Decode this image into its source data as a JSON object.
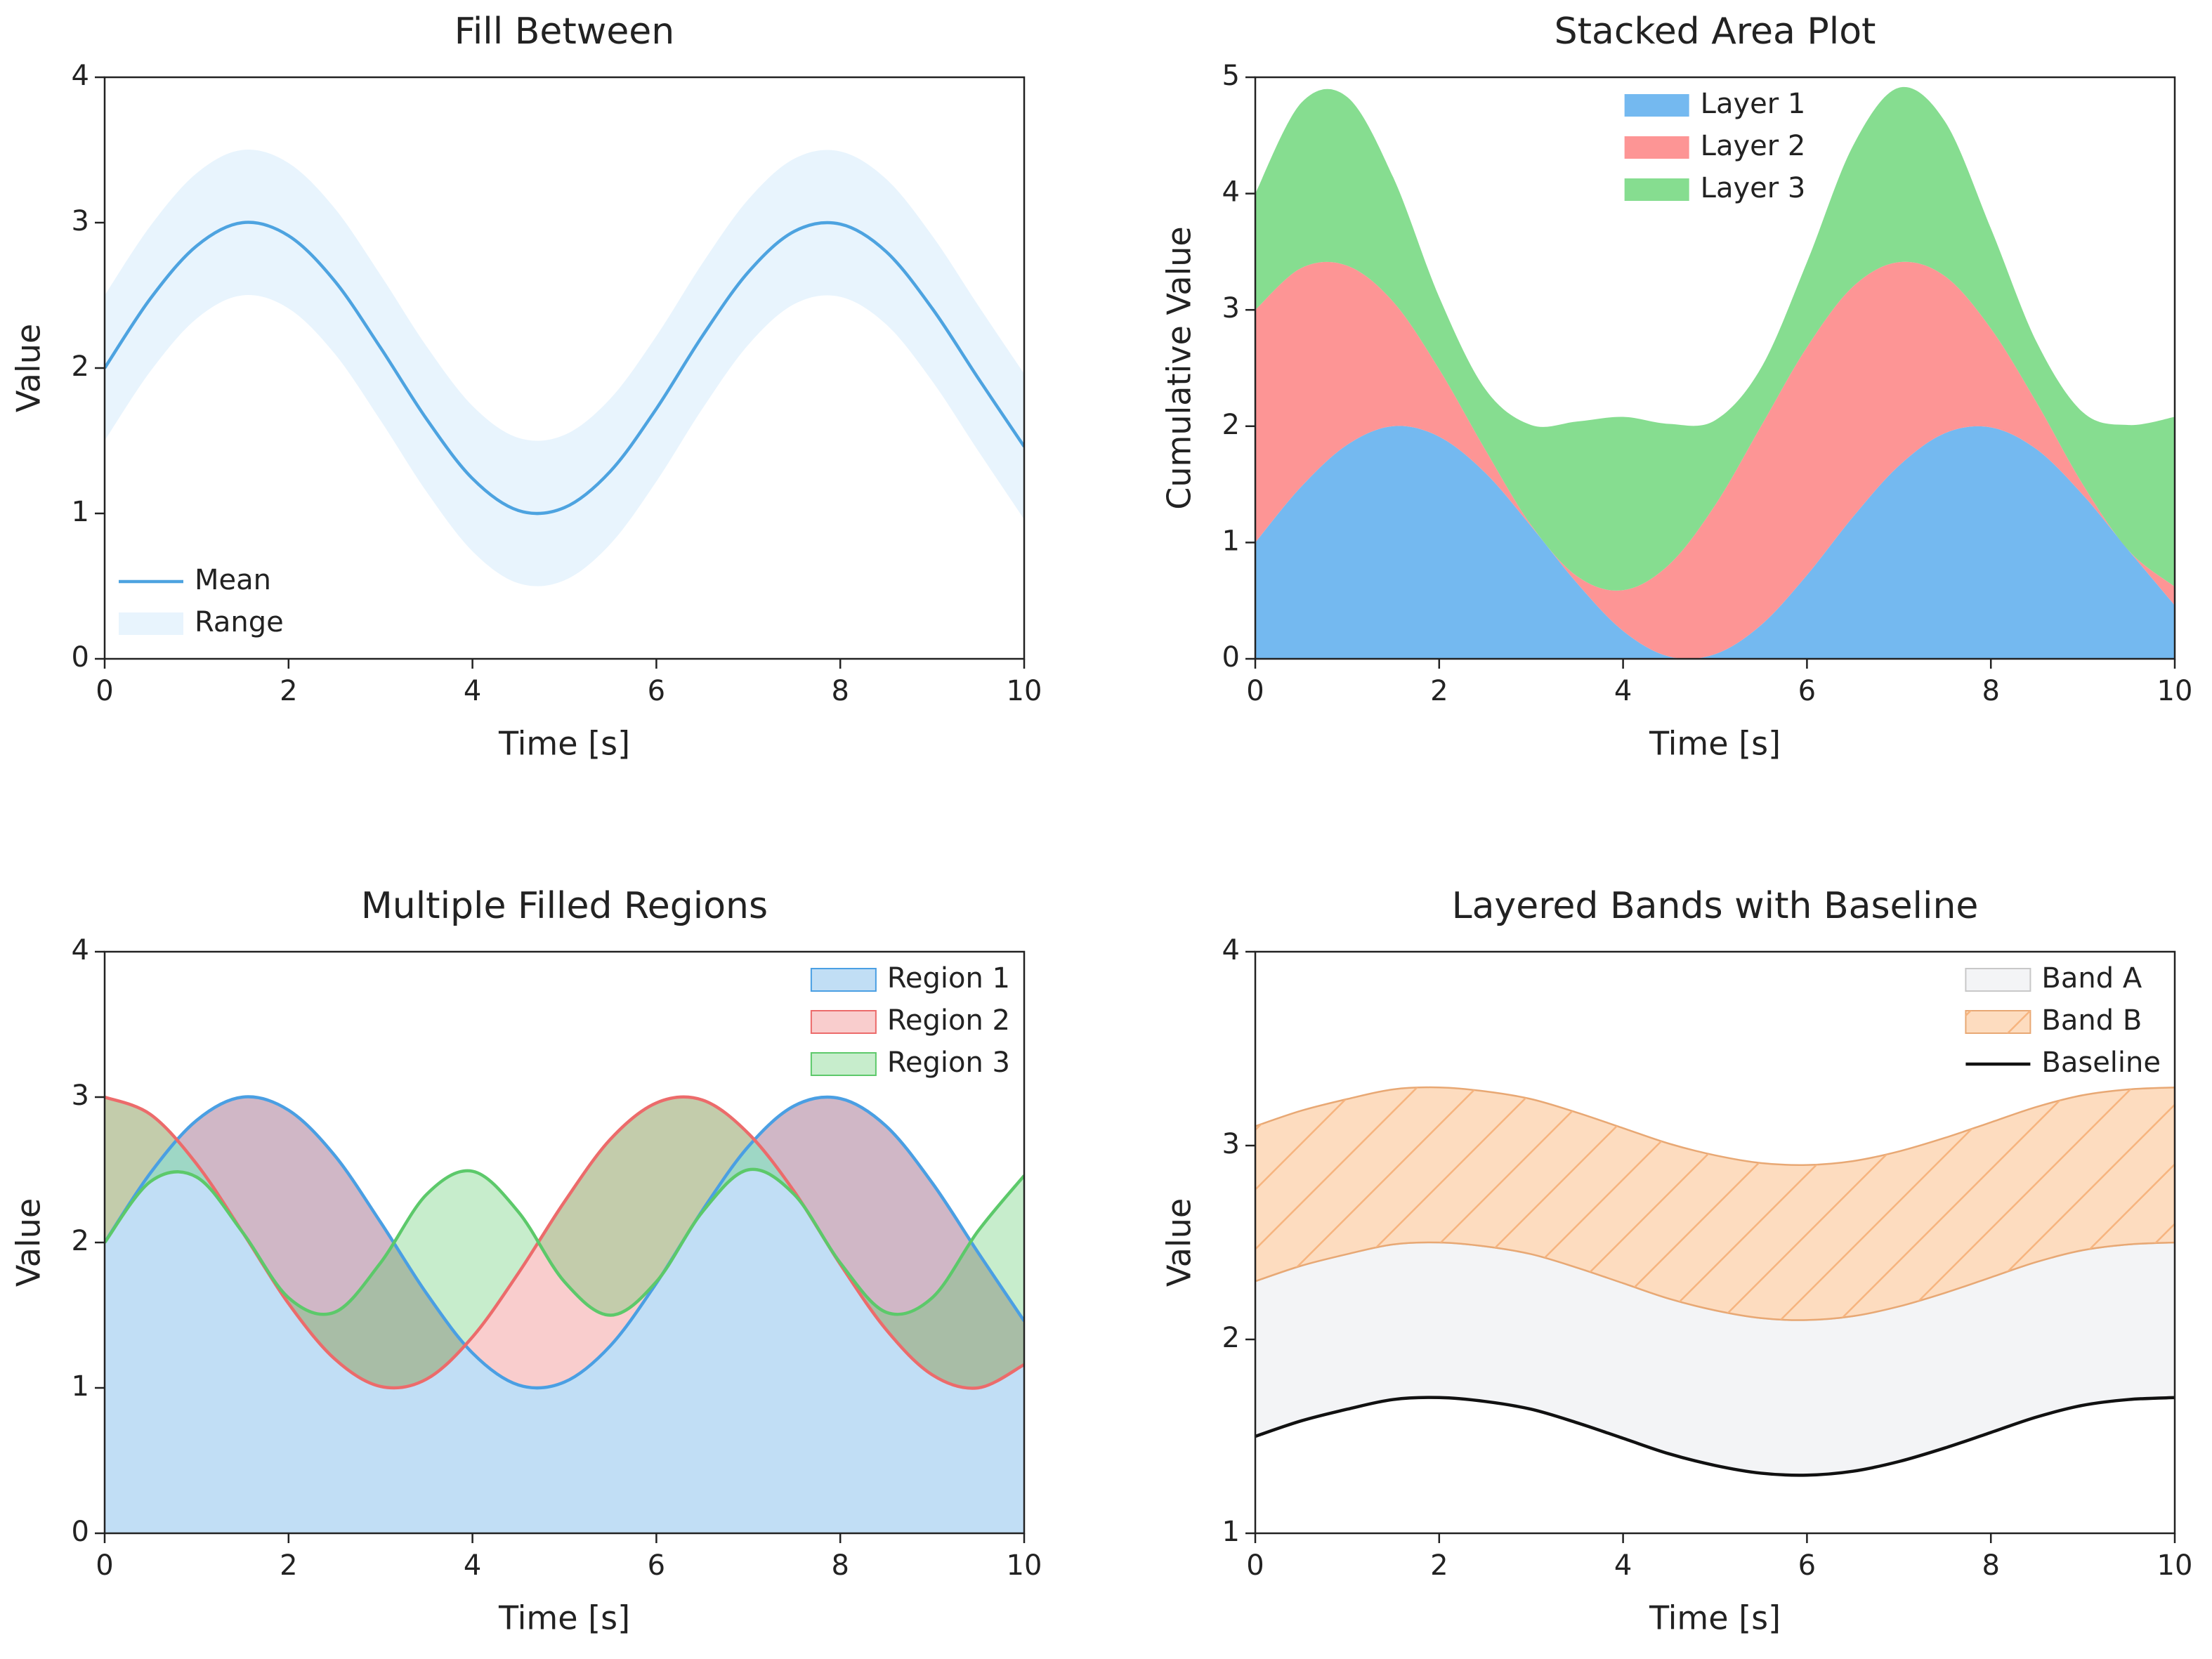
{
  "chart_data": [
    {
      "type": "fill_between",
      "title": "Fill Between",
      "x_label": "Time [s]",
      "y_label": "Value",
      "x": [
        0,
        0.5,
        1,
        1.5,
        2,
        2.5,
        3,
        3.5,
        4,
        4.5,
        5,
        5.5,
        6,
        6.5,
        7,
        7.5,
        8,
        8.5,
        9,
        9.5,
        10
      ],
      "xlim": [
        0,
        10
      ],
      "xticks": [
        0,
        2,
        4,
        6,
        8,
        10
      ],
      "ylim": [
        0,
        4
      ],
      "yticks": [
        0,
        1,
        2,
        3,
        4
      ],
      "legend": "lower left",
      "series": [
        {
          "name": "Mean",
          "color": "#4da3e0",
          "values": [
            2,
            2.48,
            2.84,
            3.0,
            2.91,
            2.6,
            2.14,
            1.65,
            1.24,
            1.02,
            1.04,
            1.29,
            1.72,
            2.22,
            2.66,
            2.94,
            2.99,
            2.8,
            2.41,
            1.93,
            1.46
          ]
        }
      ],
      "bands": [
        {
          "name": "Range",
          "color": "#e8f4fd",
          "lower": [
            1.5,
            1.98,
            2.34,
            2.5,
            2.41,
            2.1,
            1.64,
            1.15,
            0.74,
            0.52,
            0.54,
            0.79,
            1.22,
            1.72,
            2.16,
            2.44,
            2.49,
            2.3,
            1.91,
            1.43,
            0.96
          ],
          "upper": [
            2.5,
            2.98,
            3.34,
            3.5,
            3.41,
            3.1,
            2.64,
            2.15,
            1.74,
            1.52,
            1.54,
            1.79,
            2.22,
            2.72,
            3.16,
            3.44,
            3.49,
            3.3,
            2.91,
            2.43,
            1.96
          ]
        }
      ]
    },
    {
      "type": "stacked_area",
      "title": "Stacked Area Plot",
      "x_label": "Time [s]",
      "y_label": "Cumulative Value",
      "x": [
        0,
        0.5,
        1,
        1.5,
        2,
        2.5,
        3,
        3.5,
        4,
        4.5,
        5,
        5.5,
        6,
        6.5,
        7,
        7.5,
        8,
        8.5,
        9,
        9.5,
        10
      ],
      "xlim": [
        0,
        10
      ],
      "xticks": [
        0,
        2,
        4,
        6,
        8,
        10
      ],
      "ylim": [
        0,
        5
      ],
      "yticks": [
        0,
        1,
        2,
        3,
        4,
        5
      ],
      "legend": "upper center",
      "series": [
        {
          "name": "Layer 1",
          "color": "#74b9f0",
          "values": [
            1,
            1.48,
            1.84,
            2.0,
            1.91,
            1.6,
            1.14,
            0.65,
            0.24,
            0.02,
            0.04,
            0.29,
            0.72,
            1.22,
            1.66,
            1.94,
            1.99,
            1.8,
            1.41,
            0.93,
            0.46
          ]
        },
        {
          "name": "Layer 2",
          "color": "#fd9595",
          "values": [
            2,
            1.88,
            1.54,
            1.07,
            0.58,
            0.2,
            0.01,
            0.06,
            0.35,
            0.79,
            1.28,
            1.71,
            1.96,
            1.98,
            1.75,
            1.35,
            0.85,
            0.4,
            0.09,
            0,
            0.16
          ]
        },
        {
          "name": "Layer 3",
          "color": "#86dd90",
          "values": [
            1,
            1.42,
            1.45,
            1.07,
            0.62,
            0.52,
            0.86,
            1.33,
            1.49,
            1.21,
            0.73,
            0.5,
            0.73,
            1.21,
            1.5,
            1.33,
            0.86,
            0.52,
            0.62,
            1.08,
            1.46
          ]
        }
      ]
    },
    {
      "type": "fill_regions",
      "title": "Multiple Filled Regions",
      "x_label": "Time [s]",
      "y_label": "Value",
      "x": [
        0,
        0.5,
        1,
        1.5,
        2,
        2.5,
        3,
        3.5,
        4,
        4.5,
        5,
        5.5,
        6,
        6.5,
        7,
        7.5,
        8,
        8.5,
        9,
        9.5,
        10
      ],
      "xlim": [
        0,
        10
      ],
      "xticks": [
        0,
        2,
        4,
        6,
        8,
        10
      ],
      "ylim": [
        0,
        4
      ],
      "yticks": [
        0,
        1,
        2,
        3,
        4
      ],
      "legend": "upper right",
      "series": [
        {
          "name": "Region 1",
          "color": "#4a9fe3",
          "values": [
            2,
            2.48,
            2.84,
            3.0,
            2.91,
            2.6,
            2.14,
            1.65,
            1.24,
            1.02,
            1.04,
            1.29,
            1.72,
            2.22,
            2.66,
            2.94,
            2.99,
            2.8,
            2.41,
            1.93,
            1.46
          ]
        },
        {
          "name": "Region 2",
          "color": "#ec6b6b",
          "values": [
            3,
            2.88,
            2.54,
            2.07,
            1.58,
            1.2,
            1.01,
            1.06,
            1.35,
            1.79,
            2.28,
            2.71,
            2.96,
            2.98,
            2.75,
            2.35,
            1.85,
            1.4,
            1.09,
            1.0,
            1.16
          ]
        },
        {
          "name": "Region 3",
          "color": "#5cc96a",
          "values": [
            2,
            2.42,
            2.45,
            2.07,
            1.62,
            1.52,
            1.86,
            2.33,
            2.49,
            2.21,
            1.73,
            1.5,
            1.73,
            2.21,
            2.5,
            2.33,
            1.86,
            1.52,
            1.62,
            2.08,
            2.46
          ]
        }
      ]
    },
    {
      "type": "bands",
      "title": "Layered Bands with Baseline",
      "x_label": "Time [s]",
      "y_label": "Value",
      "x": [
        0,
        0.5,
        1,
        1.5,
        2,
        2.5,
        3,
        3.5,
        4,
        4.5,
        5,
        5.5,
        6,
        6.5,
        7,
        7.5,
        8,
        8.5,
        9,
        9.5,
        10
      ],
      "xlim": [
        0,
        10
      ],
      "xticks": [
        0,
        2,
        4,
        6,
        8,
        10
      ],
      "ylim": [
        1,
        4
      ],
      "yticks": [
        1,
        2,
        3,
        4
      ],
      "legend": "upper right",
      "bands": [
        {
          "name": "Band A",
          "color": "#f3f4f6",
          "edge_color": "#c8c8c8",
          "lower": [
            1.5,
            1.58,
            1.64,
            1.69,
            1.7,
            1.68,
            1.64,
            1.57,
            1.49,
            1.41,
            1.35,
            1.31,
            1.3,
            1.32,
            1.37,
            1.44,
            1.52,
            1.6,
            1.66,
            1.69,
            1.7
          ],
          "upper": [
            2.3,
            2.38,
            2.44,
            2.49,
            2.5,
            2.48,
            2.44,
            2.37,
            2.29,
            2.21,
            2.15,
            2.11,
            2.1,
            2.12,
            2.17,
            2.24,
            2.32,
            2.4,
            2.46,
            2.49,
            2.5
          ]
        },
        {
          "name": "Band B",
          "color": "#fddcbf",
          "edge_color": "#e8a874",
          "hatch": "/",
          "hatch_color": "#f6b47f",
          "lower": [
            2.3,
            2.38,
            2.44,
            2.49,
            2.5,
            2.48,
            2.44,
            2.37,
            2.29,
            2.21,
            2.15,
            2.11,
            2.1,
            2.12,
            2.17,
            2.24,
            2.32,
            2.4,
            2.46,
            2.49,
            2.5
          ],
          "upper": [
            3.1,
            3.18,
            3.24,
            3.29,
            3.3,
            3.28,
            3.24,
            3.17,
            3.09,
            3.01,
            2.95,
            2.91,
            2.9,
            2.92,
            2.97,
            3.04,
            3.12,
            3.2,
            3.26,
            3.29,
            3.3
          ]
        }
      ],
      "series": [
        {
          "name": "Baseline",
          "color": "#111111",
          "values": [
            1.5,
            1.58,
            1.64,
            1.69,
            1.7,
            1.68,
            1.64,
            1.57,
            1.49,
            1.41,
            1.35,
            1.31,
            1.3,
            1.32,
            1.37,
            1.44,
            1.52,
            1.6,
            1.66,
            1.69,
            1.7
          ]
        }
      ]
    }
  ]
}
